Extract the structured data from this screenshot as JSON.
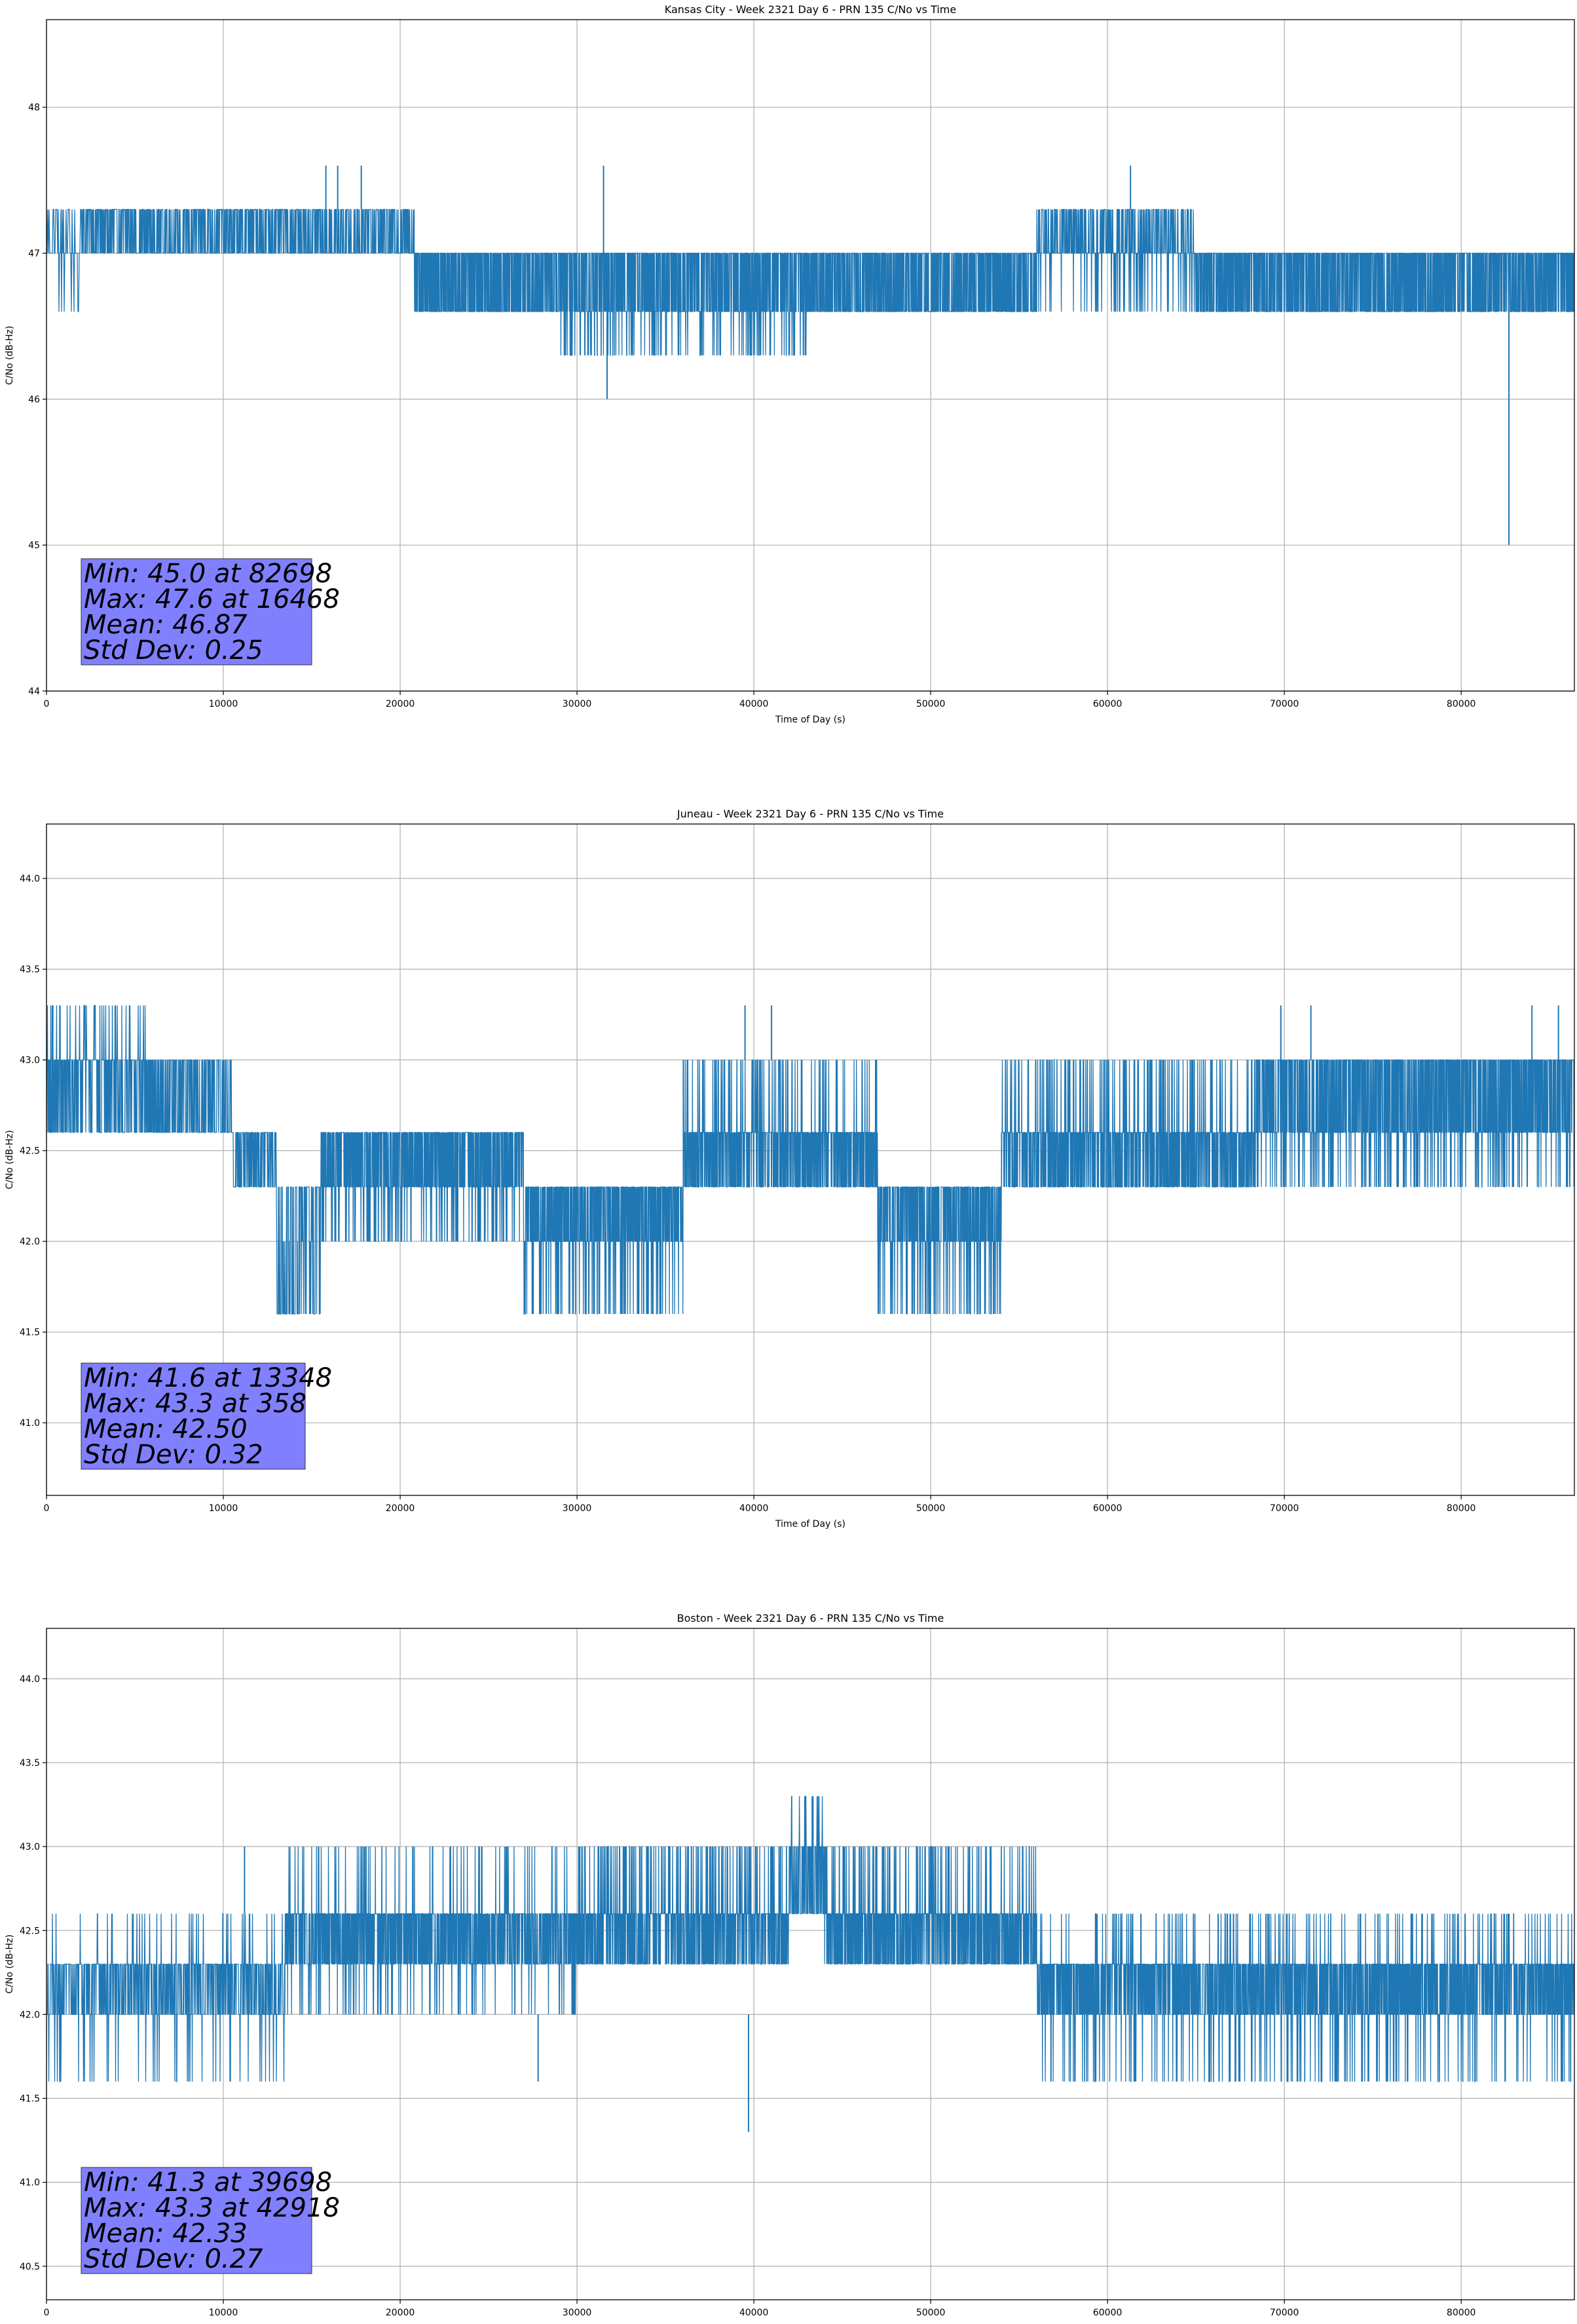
{
  "figure": {
    "background": "#ffffff"
  },
  "style": {
    "line_color": "#1f77b4",
    "grid_color": "#b0b0b0",
    "statbox_fill": "#8080ff",
    "statbox_stroke": "#333333"
  },
  "chart_data": [
    {
      "type": "line",
      "title": "Kansas City - Week 2321 Day 6 - PRN 135 C/No vs Time",
      "xlabel": "Time of Day (s)",
      "ylabel": "C/No (dB-Hz)",
      "xlim": [
        0,
        86400
      ],
      "ylim": [
        44.0,
        48.6
      ],
      "grid": true,
      "xticks": [
        0,
        10000,
        20000,
        30000,
        40000,
        50000,
        60000,
        70000,
        80000
      ],
      "xtick_labels": [
        "0",
        "10000",
        "20000",
        "30000",
        "40000",
        "50000",
        "60000",
        "70000",
        "80000"
      ],
      "yticks": [
        44,
        45,
        46,
        47,
        48
      ],
      "ytick_labels": [
        "44",
        "45",
        "46",
        "47",
        "48"
      ],
      "stats": [
        "Min: 45.0 at 82698",
        "Max: 47.6 at 16468",
        "Mean: 46.87",
        "Std Dev: 0.25"
      ],
      "series": [
        {
          "name": "C/No",
          "segments": [
            {
              "x_start": 0,
              "x_end": 2000,
              "values": [
                47.0,
                47.3,
                46.6
              ],
              "density": 1
            },
            {
              "x_start": 2000,
              "x_end": 20800,
              "values": [
                47.0,
                47.3
              ],
              "density": 2
            },
            {
              "x_start": 20800,
              "x_end": 29000,
              "values": [
                47.0,
                46.6
              ],
              "density": 3
            },
            {
              "x_start": 29000,
              "x_end": 43000,
              "values": [
                47.0,
                46.6,
                46.3
              ],
              "density": 3
            },
            {
              "x_start": 43000,
              "x_end": 56000,
              "values": [
                47.0,
                46.6
              ],
              "density": 3
            },
            {
              "x_start": 56000,
              "x_end": 65000,
              "values": [
                47.0,
                47.3,
                46.6
              ],
              "density": 2
            },
            {
              "x_start": 65000,
              "x_end": 86400,
              "values": [
                47.0,
                46.6
              ],
              "density": 3
            }
          ],
          "spikes": [
            {
              "x": 15800,
              "from": 47.3,
              "to": 47.6
            },
            {
              "x": 16468,
              "from": 47.3,
              "to": 47.6
            },
            {
              "x": 17800,
              "from": 47.3,
              "to": 47.6
            },
            {
              "x": 31500,
              "from": 47.0,
              "to": 47.6
            },
            {
              "x": 31700,
              "from": 46.6,
              "to": 46.0
            },
            {
              "x": 61300,
              "from": 47.3,
              "to": 47.6
            },
            {
              "x": 82698,
              "from": 46.6,
              "to": 45.0
            }
          ]
        }
      ]
    },
    {
      "type": "line",
      "title": "Juneau - Week 2321 Day 6 - PRN 135 C/No vs Time",
      "xlabel": "Time of Day (s)",
      "ylabel": "C/No (dB-Hz)",
      "xlim": [
        0,
        86400
      ],
      "ylim": [
        40.6,
        44.3
      ],
      "grid": true,
      "xticks": [
        0,
        10000,
        20000,
        30000,
        40000,
        50000,
        60000,
        70000,
        80000
      ],
      "xtick_labels": [
        "0",
        "10000",
        "20000",
        "30000",
        "40000",
        "50000",
        "60000",
        "70000",
        "80000"
      ],
      "yticks": [
        41.0,
        41.5,
        42.0,
        42.5,
        43.0,
        43.5,
        44.0
      ],
      "ytick_labels": [
        "41.0",
        "41.5",
        "42.0",
        "42.5",
        "43.0",
        "43.5",
        "44.0"
      ],
      "stats": [
        "Min: 41.6 at 13348",
        "Max: 43.3 at 358",
        "Mean: 42.50",
        "Std Dev: 0.32"
      ],
      "series": [
        {
          "name": "C/No",
          "segments": [
            {
              "x_start": 0,
              "x_end": 5800,
              "values": [
                43.0,
                42.6,
                43.3
              ],
              "density": 2
            },
            {
              "x_start": 5800,
              "x_end": 10500,
              "values": [
                43.0,
                42.6
              ],
              "density": 2
            },
            {
              "x_start": 10500,
              "x_end": 13000,
              "values": [
                42.6,
                42.3
              ],
              "density": 2
            },
            {
              "x_start": 13000,
              "x_end": 15500,
              "values": [
                42.3,
                41.6,
                42.0
              ],
              "density": 2
            },
            {
              "x_start": 15500,
              "x_end": 27000,
              "values": [
                42.6,
                42.3,
                42.0
              ],
              "density": 3
            },
            {
              "x_start": 27000,
              "x_end": 36000,
              "values": [
                42.3,
                42.0,
                41.6
              ],
              "density": 3
            },
            {
              "x_start": 36000,
              "x_end": 47000,
              "values": [
                42.6,
                42.3,
                43.0
              ],
              "density": 3
            },
            {
              "x_start": 47000,
              "x_end": 54000,
              "values": [
                42.3,
                42.0,
                41.6
              ],
              "density": 3
            },
            {
              "x_start": 54000,
              "x_end": 68500,
              "values": [
                42.6,
                42.3,
                43.0
              ],
              "density": 3
            },
            {
              "x_start": 68500,
              "x_end": 86400,
              "values": [
                43.0,
                42.6,
                42.3
              ],
              "density": 3
            }
          ],
          "spikes": [
            {
              "x": 358,
              "from": 43.0,
              "to": 43.3
            },
            {
              "x": 39500,
              "from": 43.0,
              "to": 43.3
            },
            {
              "x": 41000,
              "from": 43.0,
              "to": 43.3
            },
            {
              "x": 69800,
              "from": 43.0,
              "to": 43.3
            },
            {
              "x": 71500,
              "from": 43.0,
              "to": 43.3
            },
            {
              "x": 84000,
              "from": 43.0,
              "to": 43.3
            },
            {
              "x": 85500,
              "from": 43.0,
              "to": 43.3
            }
          ]
        }
      ]
    },
    {
      "type": "line",
      "title": "Boston - Week 2321 Day 6 - PRN 135 C/No vs Time",
      "xlabel": "Time of Day (s)",
      "ylabel": "C/No (dB-Hz)",
      "xlim": [
        0,
        86400
      ],
      "ylim": [
        40.3,
        44.3
      ],
      "grid": true,
      "xticks": [
        0,
        10000,
        20000,
        30000,
        40000,
        50000,
        60000,
        70000,
        80000
      ],
      "xtick_labels": [
        "0",
        "10000",
        "20000",
        "30000",
        "40000",
        "50000",
        "60000",
        "70000",
        "80000"
      ],
      "yticks": [
        40.5,
        41.0,
        41.5,
        42.0,
        42.5,
        43.0,
        43.5,
        44.0
      ],
      "ytick_labels": [
        "40.5",
        "41.0",
        "41.5",
        "42.0",
        "42.5",
        "43.0",
        "43.5",
        "44.0"
      ],
      "stats": [
        "Min: 41.3 at 39698",
        "Max: 43.3 at 42918",
        "Mean: 42.33",
        "Std Dev: 0.27"
      ],
      "series": [
        {
          "name": "C/No",
          "segments": [
            {
              "x_start": 0,
              "x_end": 13500,
              "values": [
                42.3,
                42.0,
                42.6,
                41.6
              ],
              "density": 2
            },
            {
              "x_start": 13500,
              "x_end": 30000,
              "values": [
                42.6,
                42.3,
                43.0,
                42.0
              ],
              "density": 3
            },
            {
              "x_start": 30000,
              "x_end": 42000,
              "values": [
                42.6,
                42.3,
                43.0
              ],
              "density": 3
            },
            {
              "x_start": 42000,
              "x_end": 44000,
              "values": [
                42.6,
                43.0,
                43.3
              ],
              "density": 2
            },
            {
              "x_start": 44000,
              "x_end": 56000,
              "values": [
                42.6,
                42.3,
                43.0
              ],
              "density": 3
            },
            {
              "x_start": 56000,
              "x_end": 86400,
              "values": [
                42.3,
                42.0,
                42.6,
                41.6
              ],
              "density": 3
            }
          ],
          "spikes": [
            {
              "x": 11200,
              "from": 42.6,
              "to": 43.0
            },
            {
              "x": 39698,
              "from": 42.0,
              "to": 41.3
            },
            {
              "x": 42918,
              "from": 43.0,
              "to": 43.3
            },
            {
              "x": 43300,
              "from": 43.0,
              "to": 43.3
            },
            {
              "x": 27800,
              "from": 42.0,
              "to": 41.6
            }
          ]
        }
      ]
    }
  ]
}
